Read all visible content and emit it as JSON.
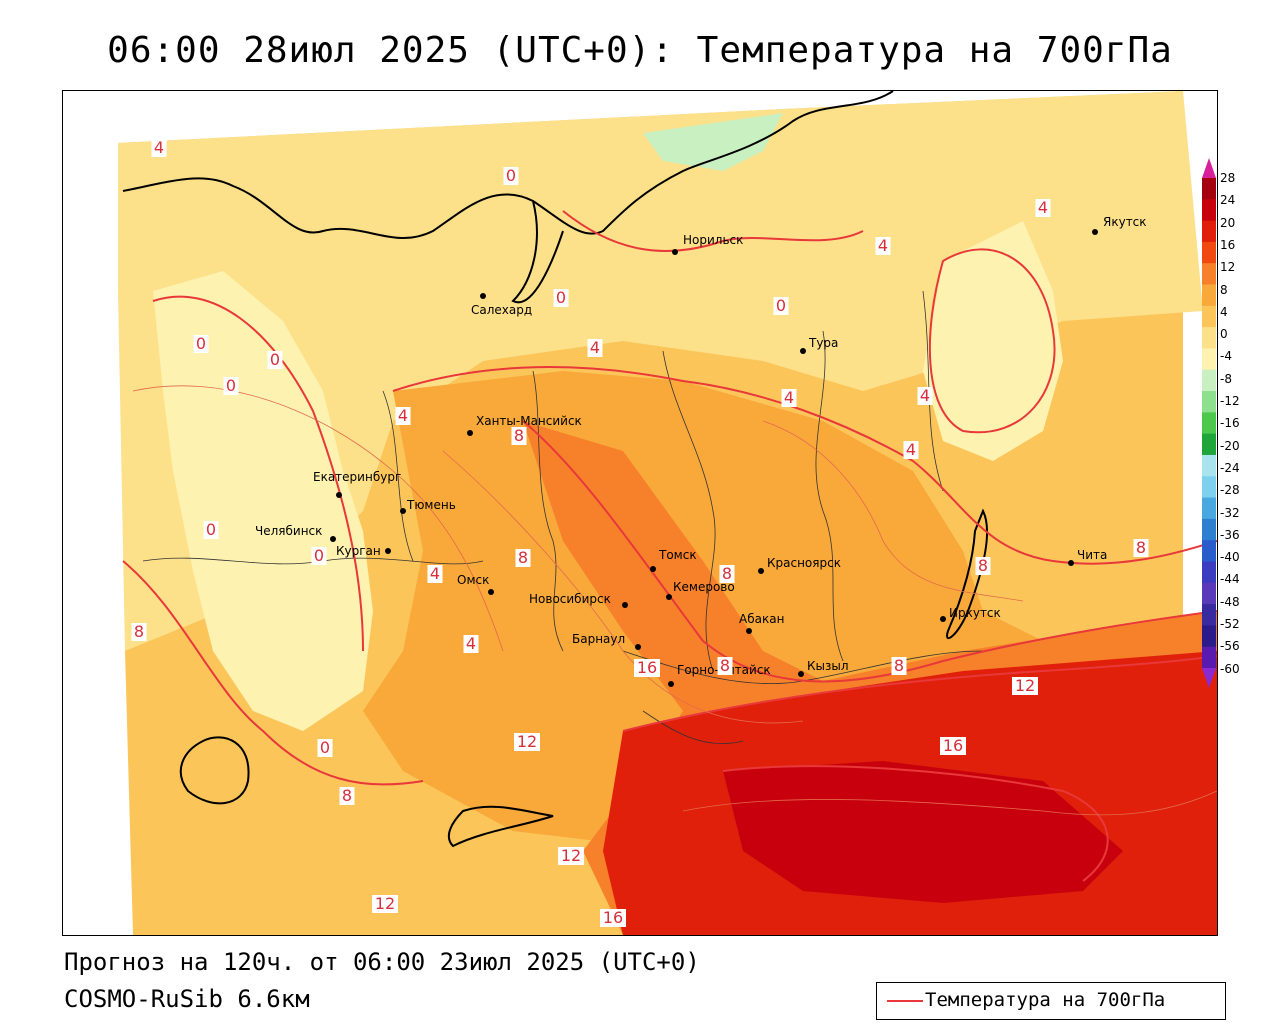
{
  "title": "06:00 28июл 2025 (UTC+0): Температура на 700гПа",
  "footer": {
    "forecast": "Прогноз на 120ч. от 06:00 23июл 2025 (UTC+0)",
    "model": "COSMO-RuSib 6.6км"
  },
  "legend": {
    "line_label": "Температура на 700гПа",
    "line_color": "#e8383a"
  },
  "color_scale": {
    "ticks": [
      "28",
      "24",
      "20",
      "16",
      "12",
      "8",
      "4",
      "0",
      "-4",
      "-8",
      "-12",
      "-16",
      "-20",
      "-24",
      "-28",
      "-32",
      "-36",
      "-40",
      "-44",
      "-48",
      "-52",
      "-56",
      "-60"
    ],
    "colors": [
      "#a50010",
      "#c8000e",
      "#e0200a",
      "#f04a10",
      "#f7812a",
      "#f9a83a",
      "#fbc55a",
      "#fde08a",
      "#fdf2b0",
      "#c8f0c0",
      "#8ee08e",
      "#4cc84c",
      "#1fa53a",
      "#a9e4ee",
      "#7dd0ee",
      "#4aa8e0",
      "#2f7fd0",
      "#2a5ccc",
      "#3c3cc0",
      "#5a3ab8",
      "#3a2aa0",
      "#2a1a8a",
      "#5a1ab0"
    ],
    "top_arrow_color": "#d8209a",
    "bottom_arrow_color": "#8a2ad0"
  },
  "cities": [
    {
      "name": "Якутск"
    },
    {
      "name": "Норильск"
    },
    {
      "name": "Салехард"
    },
    {
      "name": "Тура"
    },
    {
      "name": "Ханты-Мансийск"
    },
    {
      "name": "Екатеринбург"
    },
    {
      "name": "Тюмень"
    },
    {
      "name": "Челябинск"
    },
    {
      "name": "Курган"
    },
    {
      "name": "Омск"
    },
    {
      "name": "Новосибирск"
    },
    {
      "name": "Томск"
    },
    {
      "name": "Кемерово"
    },
    {
      "name": "Красноярск"
    },
    {
      "name": "Абакан"
    },
    {
      "name": "Барнаул"
    },
    {
      "name": "Горно-Алтайск"
    },
    {
      "name": "Кызыл"
    },
    {
      "name": "Иркутск"
    },
    {
      "name": "Чита"
    }
  ],
  "contour_labels": [
    "4",
    "0",
    "0",
    "0",
    "0",
    "0",
    "0",
    "0",
    "0",
    "0",
    "4",
    "4",
    "4",
    "4",
    "4",
    "4",
    "4",
    "4",
    "4",
    "8",
    "8",
    "8",
    "8",
    "8",
    "8",
    "8",
    "8",
    "8",
    "12",
    "12",
    "12",
    "12",
    "16",
    "16",
    "16"
  ]
}
